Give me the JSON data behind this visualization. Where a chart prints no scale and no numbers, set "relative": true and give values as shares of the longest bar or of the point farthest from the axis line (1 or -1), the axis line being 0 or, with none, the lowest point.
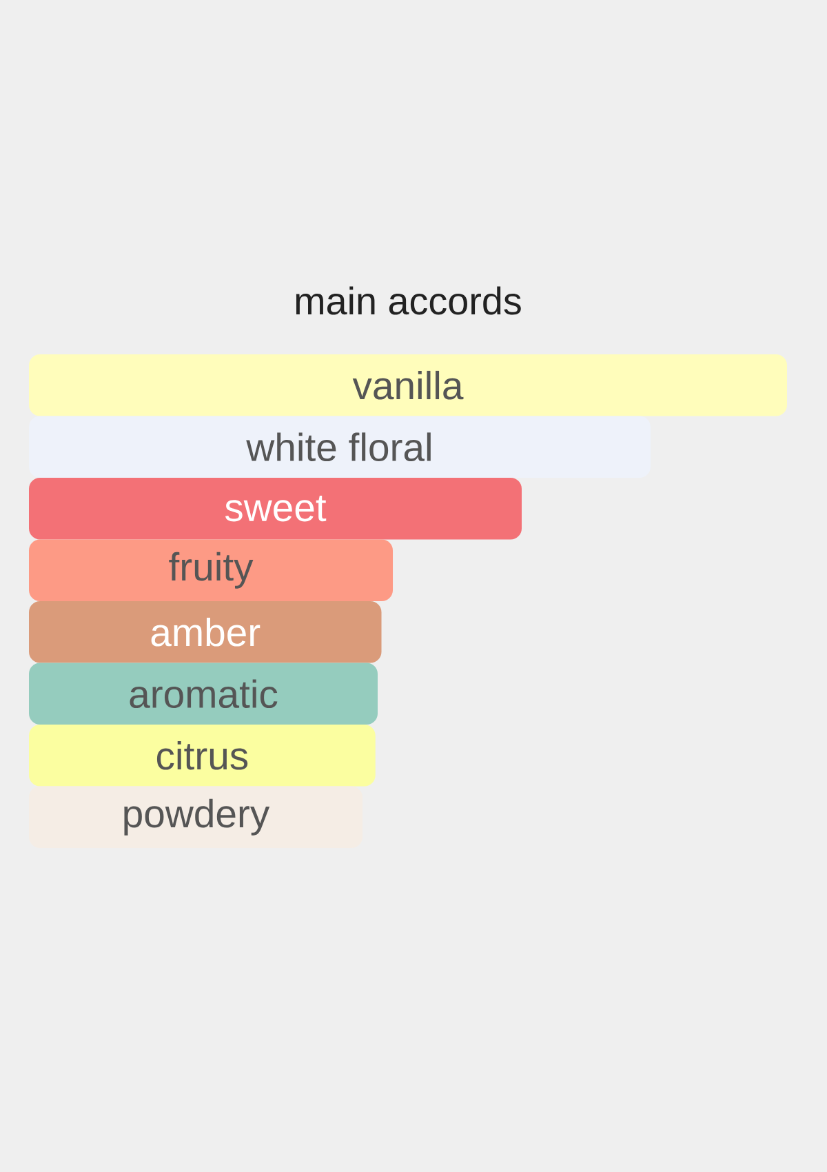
{
  "chart_data": {
    "type": "bar",
    "orientation": "horizontal",
    "relative": true,
    "title": "main accords",
    "categories": [
      "vanilla",
      "white floral",
      "sweet",
      "fruity",
      "amber",
      "aromatic",
      "citrus",
      "powdery"
    ],
    "values": [
      1,
      0.82,
      0.65,
      0.48,
      0.465,
      0.46,
      0.457,
      0.44
    ],
    "colors": [
      "#fffdbb",
      "#eef2fa",
      "#f37176",
      "#fd9a85",
      "#da9b7a",
      "#95ccbe",
      "#fbfea0",
      "#f5ede5"
    ]
  }
}
